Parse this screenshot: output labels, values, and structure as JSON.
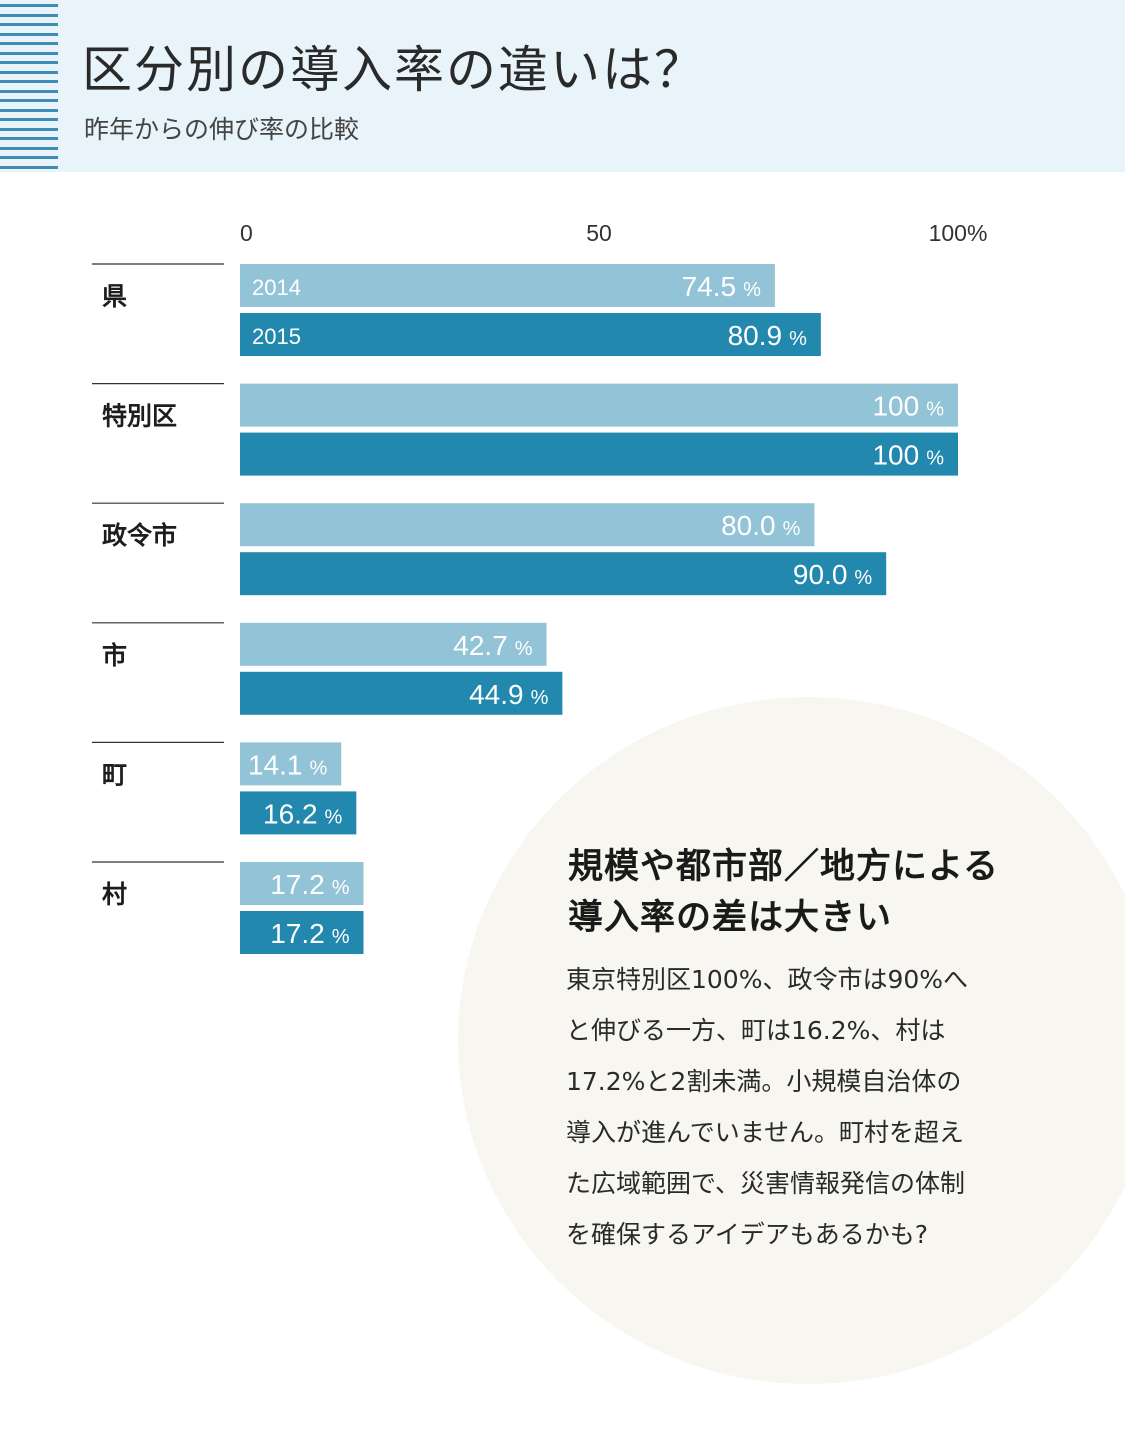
{
  "header": {
    "title": "区分別の導入率の違いは？",
    "subtitle": "昨年からの伸び率の比較"
  },
  "colors": {
    "header_bg": "#e8f4f9",
    "stripe": "#3f8db5",
    "bar_2014": "#93c3d6",
    "bar_2015": "#2388ad",
    "circle_bg": "#f7f6f1"
  },
  "chart_data": {
    "type": "bar",
    "orientation": "horizontal",
    "xlim": [
      0,
      100
    ],
    "x_ticks": [
      "0",
      "50",
      "100%"
    ],
    "categories": [
      "県",
      "特別区",
      "政令市",
      "市",
      "町",
      "村"
    ],
    "series": [
      {
        "name": "2014",
        "values": [
          74.5,
          100,
          80.0,
          42.7,
          14.1,
          17.2
        ],
        "labels": [
          "74.5",
          "100",
          "80.0",
          "42.7",
          "14.1",
          "17.2"
        ]
      },
      {
        "name": "2015",
        "values": [
          80.9,
          100,
          90.0,
          44.9,
          16.2,
          17.2
        ],
        "labels": [
          "80.9",
          "100",
          "90.0",
          "44.9",
          "16.2",
          "17.2"
        ]
      }
    ],
    "unit": "%"
  },
  "note": {
    "heading_lines": [
      "規模や都市部／地方による",
      "導入率の差は大きい"
    ],
    "body_lines": [
      "東京特別区100%、政令市は90%へ",
      "と伸びる一方、町は16.2%、村は",
      "17.2%と2割未満。小規模自治体の",
      "導入が進んでいません。町村を超え",
      "た広域範囲で、災害情報発信の体制",
      "を確保するアイデアもあるかも?"
    ]
  }
}
